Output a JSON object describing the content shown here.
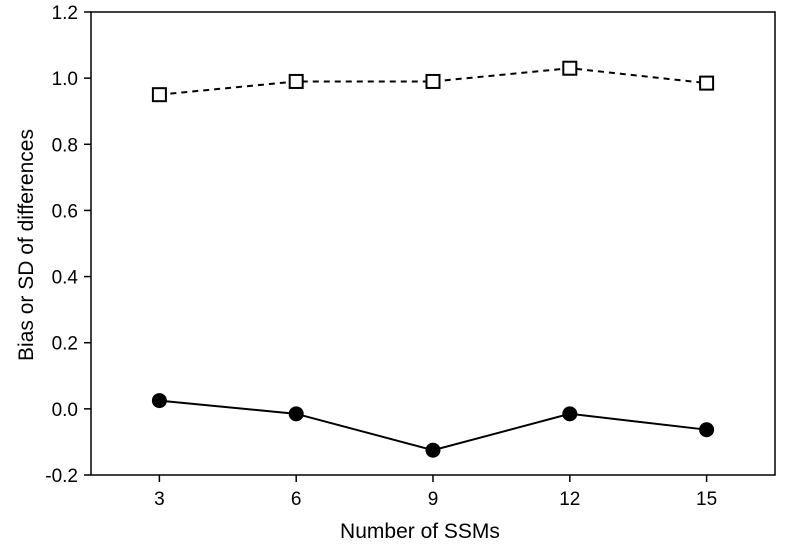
{
  "chart_data": {
    "type": "line",
    "xlabel": "Number of SSMs",
    "ylabel": "Bias or SD of differences",
    "x": [
      3,
      6,
      9,
      12,
      15
    ],
    "x_ticks": [
      "3",
      "6",
      "9",
      "12",
      "15"
    ],
    "y_ticks": [
      "-0.2",
      "0.0",
      "0.2",
      "0.4",
      "0.6",
      "0.8",
      "1.0",
      "1.2"
    ],
    "xlim": [
      1.5,
      16.5
    ],
    "ylim": [
      -0.2,
      1.2
    ],
    "grid": false,
    "series": [
      {
        "values": [
          0.95,
          0.99,
          0.99,
          1.03,
          0.985
        ],
        "line_style": "dashed",
        "marker": "open-square",
        "color": "#000000"
      },
      {
        "values": [
          0.025,
          -0.015,
          -0.125,
          -0.015,
          -0.063
        ],
        "line_style": "solid",
        "marker": "filled-circle",
        "color": "#000000"
      }
    ]
  }
}
